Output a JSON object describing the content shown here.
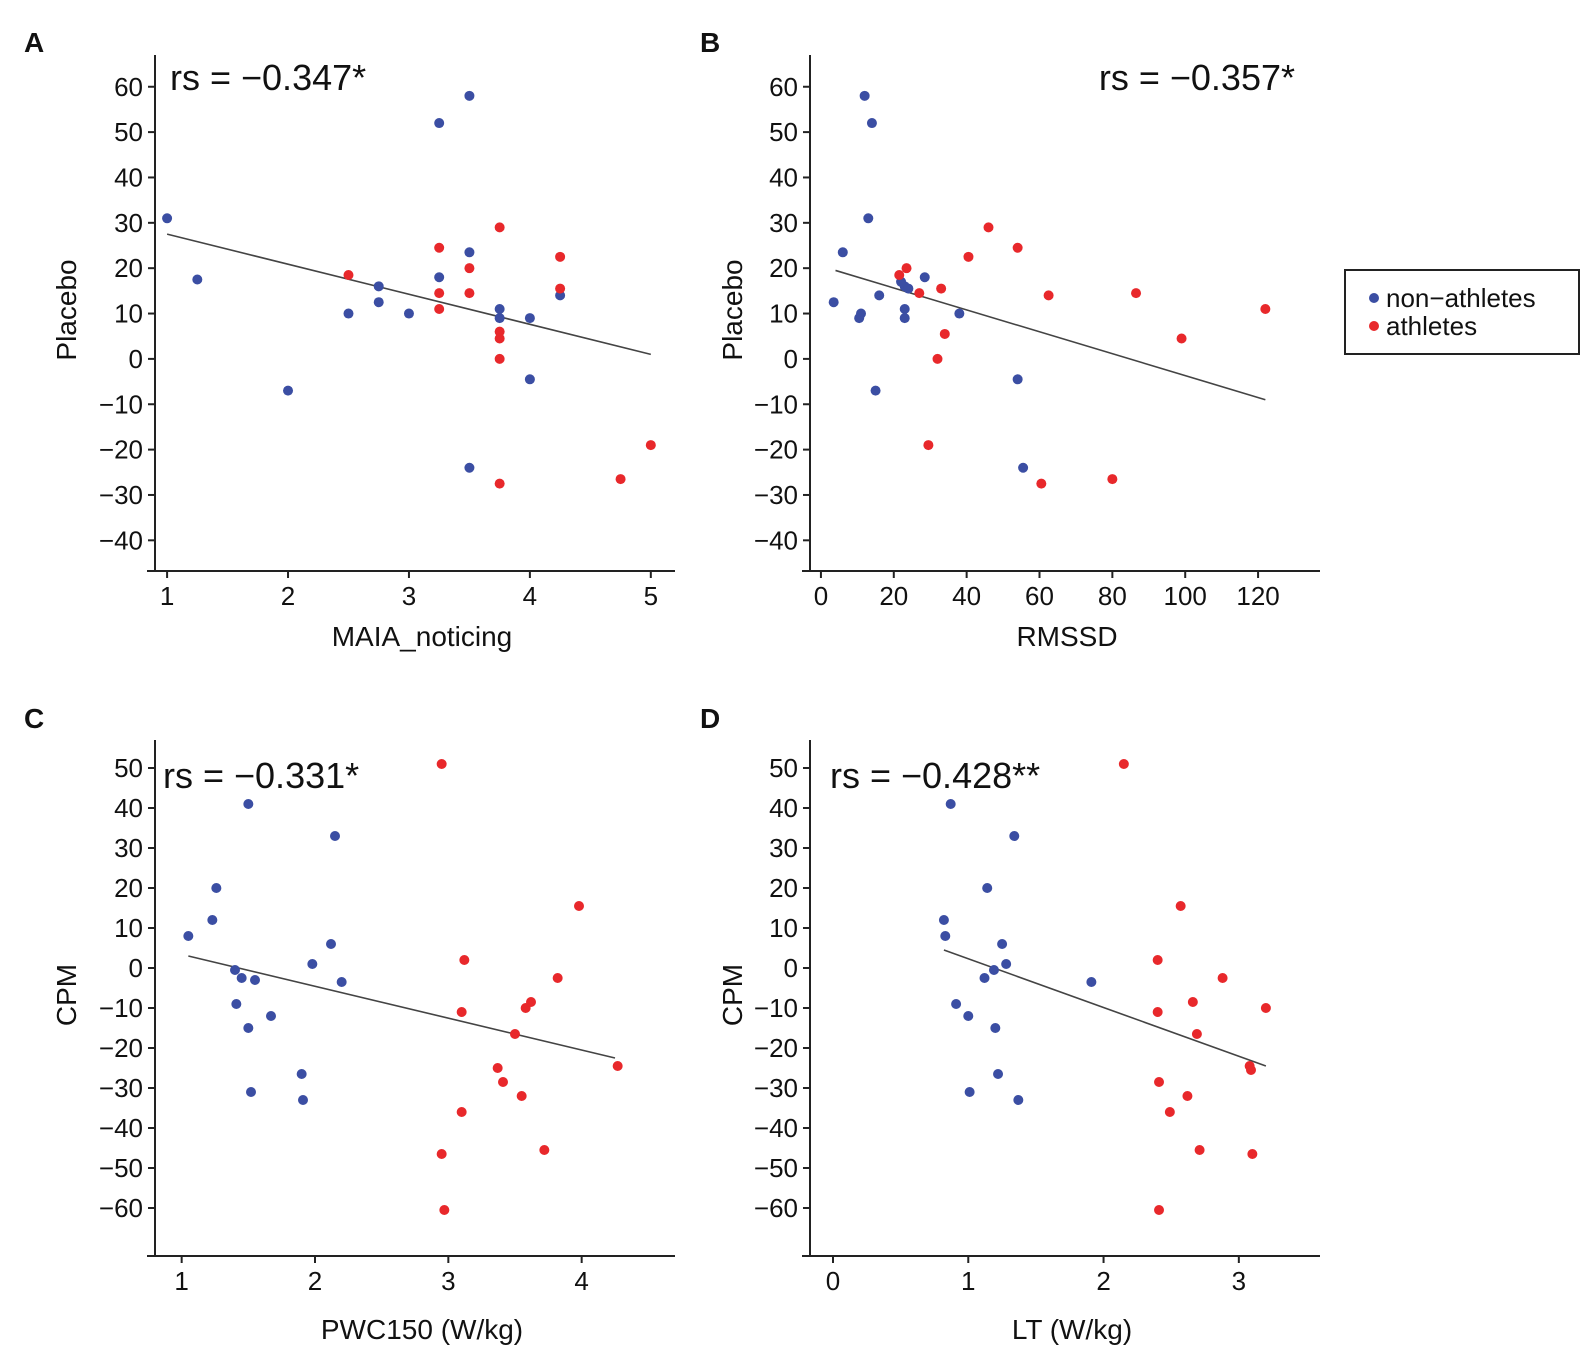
{
  "colors": {
    "non_athletes": "#3b4ea3",
    "athletes": "#e8282b",
    "fit": "#444444"
  },
  "legend": {
    "entries": [
      {
        "label": "non−athletes",
        "group": "non_athletes"
      },
      {
        "label": "athletes",
        "group": "athletes"
      }
    ]
  },
  "chart_data": [
    {
      "panel": "A",
      "type": "scatter",
      "xlabel": "MAIA_noticing",
      "ylabel": "Placebo",
      "annotation": "rs = −0.347*",
      "xlim": [
        0.9,
        5.2
      ],
      "ylim": [
        -45,
        67
      ],
      "xticks": [
        1,
        2,
        3,
        4,
        5
      ],
      "yticks": [
        60,
        50,
        40,
        30,
        20,
        10,
        0,
        -10,
        -20,
        -30,
        -40
      ],
      "fit": {
        "x": [
          1,
          5
        ],
        "y": [
          27.5,
          1
        ]
      },
      "series": [
        {
          "name": "non−athletes",
          "group": "non_athletes",
          "points": [
            [
              1.0,
              31
            ],
            [
              1.25,
              17.5
            ],
            [
              2.0,
              -7
            ],
            [
              2.5,
              10
            ],
            [
              2.75,
              16
            ],
            [
              2.75,
              12.5
            ],
            [
              3.0,
              10
            ],
            [
              3.25,
              52
            ],
            [
              3.25,
              18
            ],
            [
              3.5,
              58
            ],
            [
              3.5,
              23.5
            ],
            [
              3.5,
              -24
            ],
            [
              3.75,
              11
            ],
            [
              3.75,
              9
            ],
            [
              4.0,
              9
            ],
            [
              4.0,
              -4.5
            ],
            [
              4.25,
              14
            ]
          ]
        },
        {
          "name": "athletes",
          "group": "athletes",
          "points": [
            [
              2.5,
              18.5
            ],
            [
              3.25,
              24.5
            ],
            [
              3.25,
              14.5
            ],
            [
              3.25,
              11
            ],
            [
              3.5,
              20
            ],
            [
              3.5,
              14.5
            ],
            [
              3.75,
              29
            ],
            [
              3.75,
              6
            ],
            [
              3.75,
              4.5
            ],
            [
              3.75,
              0
            ],
            [
              3.75,
              -27.5
            ],
            [
              4.25,
              22.5
            ],
            [
              4.25,
              15.5
            ],
            [
              4.75,
              -26.5
            ],
            [
              5.0,
              -19
            ]
          ]
        }
      ]
    },
    {
      "panel": "B",
      "type": "scatter",
      "xlabel": "RMSSD",
      "ylabel": "Placebo",
      "annotation": "rs = −0.357*",
      "xlim": [
        -3,
        137
      ],
      "ylim": [
        -45,
        67
      ],
      "xticks": [
        0,
        20,
        40,
        60,
        80,
        100,
        120
      ],
      "yticks": [
        60,
        50,
        40,
        30,
        20,
        10,
        0,
        -10,
        -20,
        -30,
        -40
      ],
      "fit": {
        "x": [
          4,
          122
        ],
        "y": [
          19.5,
          -9
        ]
      },
      "series": [
        {
          "name": "non−athletes",
          "group": "non_athletes",
          "points": [
            [
              3.5,
              12.5
            ],
            [
              6,
              23.5
            ],
            [
              10.5,
              9
            ],
            [
              11,
              10
            ],
            [
              12,
              58
            ],
            [
              13,
              31
            ],
            [
              14,
              52
            ],
            [
              15,
              -7
            ],
            [
              16,
              14
            ],
            [
              22,
              17
            ],
            [
              23,
              16
            ],
            [
              23,
              11
            ],
            [
              23,
              9
            ],
            [
              24,
              15.5
            ],
            [
              28.5,
              18
            ],
            [
              38,
              10
            ],
            [
              54,
              -4.5
            ],
            [
              55.5,
              -24
            ]
          ]
        },
        {
          "name": "athletes",
          "group": "athletes",
          "points": [
            [
              21.5,
              18.5
            ],
            [
              23.5,
              20
            ],
            [
              27,
              14.5
            ],
            [
              29.5,
              -19
            ],
            [
              32,
              0
            ],
            [
              33,
              15.5
            ],
            [
              34,
              5.5
            ],
            [
              40.5,
              22.5
            ],
            [
              46,
              29
            ],
            [
              54,
              24.5
            ],
            [
              60.5,
              -27.5
            ],
            [
              62.5,
              14
            ],
            [
              80,
              -26.5
            ],
            [
              86.5,
              14.5
            ],
            [
              99,
              4.5
            ],
            [
              122,
              11
            ]
          ]
        }
      ]
    },
    {
      "panel": "C",
      "type": "scatter",
      "xlabel": "PWC150 (W/kg)",
      "ylabel": "CPM",
      "annotation": "rs = −0.331*",
      "xlim": [
        0.8,
        4.7
      ],
      "ylim": [
        -70,
        57
      ],
      "xticks": [
        1,
        2,
        3,
        4
      ],
      "yticks": [
        50,
        40,
        30,
        20,
        10,
        0,
        -10,
        -20,
        -30,
        -40,
        -50,
        -60
      ],
      "fit": {
        "x": [
          1.05,
          4.25
        ],
        "y": [
          3,
          -22.5
        ]
      },
      "series": [
        {
          "name": "non−athletes",
          "group": "non_athletes",
          "points": [
            [
              1.05,
              8
            ],
            [
              1.23,
              12
            ],
            [
              1.26,
              20
            ],
            [
              1.4,
              -0.5
            ],
            [
              1.41,
              -9
            ],
            [
              1.45,
              -2.5
            ],
            [
              1.5,
              -15
            ],
            [
              1.5,
              41
            ],
            [
              1.52,
              -31
            ],
            [
              1.55,
              -3
            ],
            [
              1.67,
              -12
            ],
            [
              1.9,
              -26.5
            ],
            [
              1.91,
              -33
            ],
            [
              1.98,
              1
            ],
            [
              2.12,
              6
            ],
            [
              2.15,
              33
            ],
            [
              2.2,
              -3.5
            ]
          ]
        },
        {
          "name": "athletes",
          "group": "athletes",
          "points": [
            [
              2.95,
              51
            ],
            [
              2.95,
              -46.5
            ],
            [
              2.97,
              -60.5
            ],
            [
              3.1,
              -36
            ],
            [
              3.1,
              -11
            ],
            [
              3.12,
              2
            ],
            [
              3.37,
              -25
            ],
            [
              3.41,
              -28.5
            ],
            [
              3.5,
              -16.5
            ],
            [
              3.55,
              -32
            ],
            [
              3.58,
              -10
            ],
            [
              3.62,
              -8.5
            ],
            [
              3.72,
              -45.5
            ],
            [
              3.82,
              -2.5
            ],
            [
              3.98,
              15.5
            ],
            [
              4.27,
              -24.5
            ]
          ]
        }
      ]
    },
    {
      "panel": "D",
      "type": "scatter",
      "xlabel": "LT (W/kg)",
      "ylabel": "CPM",
      "annotation": "rs = −0.428**",
      "xlim": [
        -0.17,
        3.6
      ],
      "ylim": [
        -70,
        57
      ],
      "xticks": [
        0,
        1,
        2,
        3
      ],
      "yticks": [
        50,
        40,
        30,
        20,
        10,
        0,
        -10,
        -20,
        -30,
        -40,
        -50,
        -60
      ],
      "fit": {
        "x": [
          0.82,
          3.2
        ],
        "y": [
          4.5,
          -24.5
        ]
      },
      "series": [
        {
          "name": "non−athletes",
          "group": "non_athletes",
          "points": [
            [
              0.82,
              12
            ],
            [
              0.83,
              8
            ],
            [
              0.87,
              41
            ],
            [
              0.91,
              -9
            ],
            [
              1.0,
              -12
            ],
            [
              1.01,
              -31
            ],
            [
              1.12,
              -2.5
            ],
            [
              1.14,
              20
            ],
            [
              1.19,
              -0.5
            ],
            [
              1.2,
              -15
            ],
            [
              1.22,
              -26.5
            ],
            [
              1.25,
              6
            ],
            [
              1.28,
              1
            ],
            [
              1.34,
              33
            ],
            [
              1.37,
              -33
            ],
            [
              1.91,
              -3.5
            ]
          ]
        },
        {
          "name": "athletes",
          "group": "athletes",
          "points": [
            [
              2.15,
              51
            ],
            [
              2.4,
              2
            ],
            [
              2.4,
              -11
            ],
            [
              2.41,
              -28.5
            ],
            [
              2.41,
              -60.5
            ],
            [
              2.49,
              -36
            ],
            [
              2.57,
              15.5
            ],
            [
              2.62,
              -32
            ],
            [
              2.66,
              -8.5
            ],
            [
              2.69,
              -16.5
            ],
            [
              2.71,
              -45.5
            ],
            [
              2.88,
              -2.5
            ],
            [
              3.08,
              -24.5
            ],
            [
              3.09,
              -25.5
            ],
            [
              3.1,
              -46.5
            ],
            [
              3.2,
              -10
            ]
          ]
        }
      ]
    }
  ]
}
